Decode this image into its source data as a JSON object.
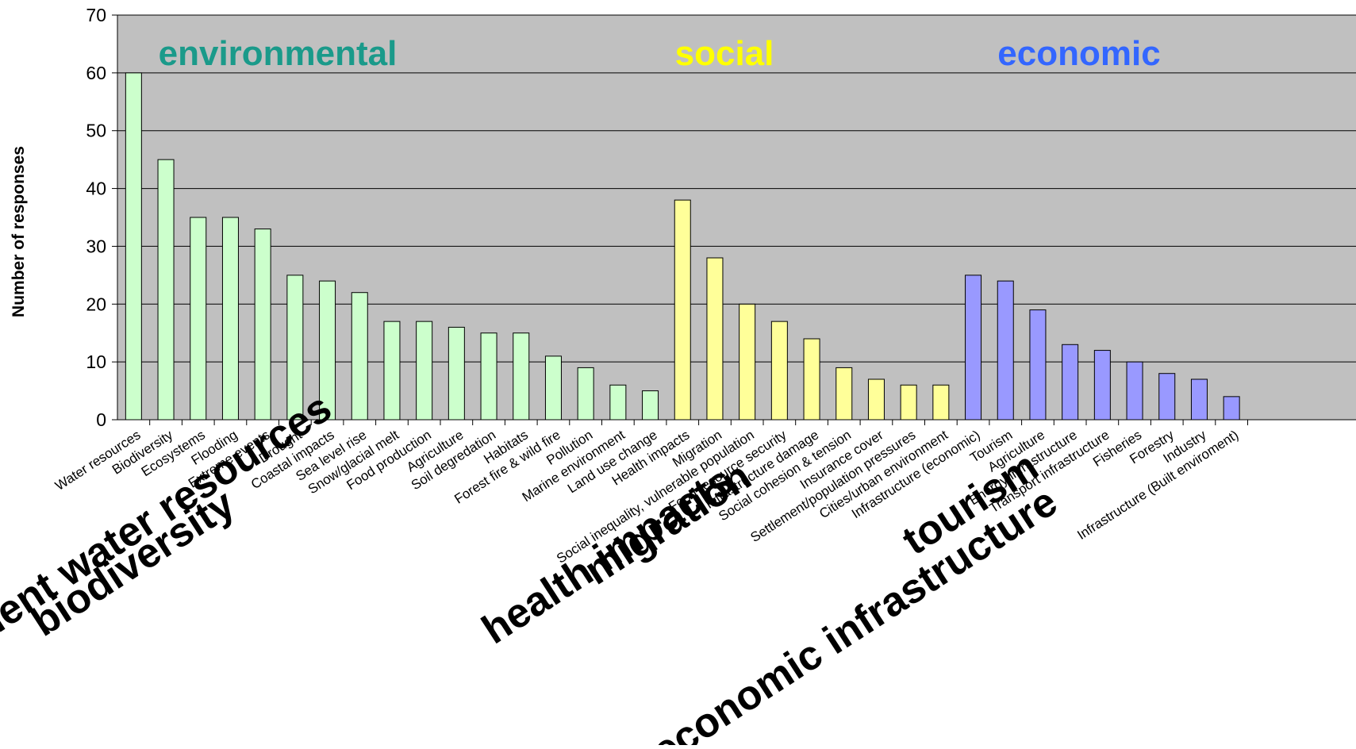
{
  "chart_data": {
    "type": "bar",
    "ylabel": "Number of responses",
    "ylim": [
      0,
      70
    ],
    "yticks": [
      0,
      10,
      20,
      30,
      40,
      50,
      60,
      70
    ],
    "grid": true,
    "background_color": "#c0c0c0",
    "group_labels": [
      {
        "label": "environmental",
        "color": "#1a9a8a"
      },
      {
        "label": "social",
        "color": "#ffff00"
      },
      {
        "label": "economic",
        "color": "#3366ff"
      }
    ],
    "groups": [
      {
        "name": "environmental",
        "bar_color": "#ccffcc",
        "categories": [
          "Water resources",
          "Biodiversity",
          "Ecosystems",
          "Flooding",
          "Extreme events",
          "Drought",
          "Coastal impacts",
          "Sea level rise",
          "Snow/glacial melt",
          "Food production",
          "Agriculture",
          "Soil degredation",
          "Habitats",
          "Forest fire & wild fire",
          "Pollution",
          "Marine environment",
          "Land use change"
        ],
        "values": [
          60,
          45,
          35,
          35,
          33,
          25,
          24,
          22,
          17,
          17,
          16,
          15,
          15,
          11,
          9,
          6,
          5
        ]
      },
      {
        "name": "social",
        "bar_color": "#ffff99",
        "categories": [
          "Health impacts",
          "Migration",
          "Social inequality, vulnerable population",
          "Food resource security",
          "Infrastructure damage",
          "Social cohesion & tension",
          "Insurance cover",
          "Settlement/population pressures",
          "Cities/urban environment"
        ],
        "values": [
          38,
          28,
          20,
          17,
          14,
          9,
          7,
          6,
          6
        ]
      },
      {
        "name": "economic",
        "bar_color": "#9999ff",
        "categories": [
          "Infrastructure (economic)",
          "Tourism",
          "Agriculture",
          "Energy infrastructure",
          "Transport infrastructure",
          "Fisheries",
          "Forestry",
          "Industry",
          "Infrastructure (Built enviroment)"
        ],
        "values": [
          25,
          24,
          19,
          13,
          12,
          10,
          8,
          7,
          4
        ]
      }
    ],
    "annotations": [
      {
        "text": "agement water resources",
        "anchor": "Water resources"
      },
      {
        "text": "biodiversity",
        "anchor": "Biodiversity"
      },
      {
        "text": "health impacts",
        "anchor": "Health impacts"
      },
      {
        "text": "migration",
        "anchor": "Migration"
      },
      {
        "text": "economic infrastructure",
        "anchor": "Infrastructure (economic)"
      },
      {
        "text": "tourism",
        "anchor": "Tourism"
      }
    ]
  }
}
